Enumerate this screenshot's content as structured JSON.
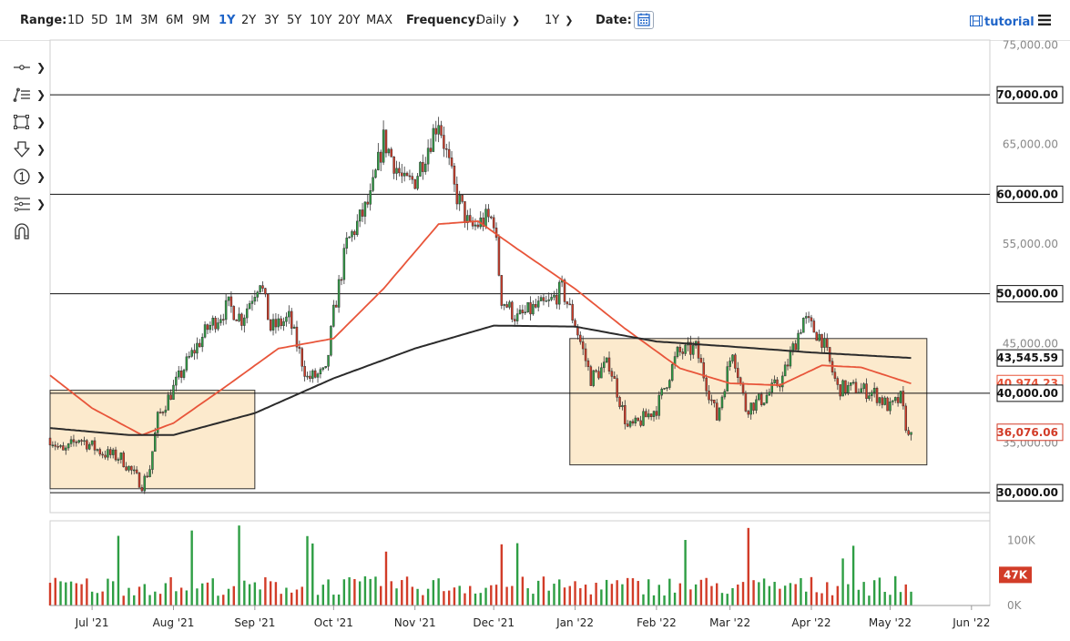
{
  "toolbar": {
    "range_label": "Range:",
    "ranges": [
      "1D",
      "5D",
      "1M",
      "3M",
      "6M",
      "9M",
      "1Y",
      "2Y",
      "3Y",
      "5Y",
      "10Y",
      "20Y",
      "MAX"
    ],
    "active_range": "1Y",
    "frequency_label": "Frequency:",
    "frequency_value": "Daily",
    "period_value": "1Y",
    "date_label": "Date:",
    "tutorial_label": "tutorial"
  },
  "tools": [
    "crosshair-icon",
    "trend-lines-icon",
    "shapes-icon",
    "arrow-down-icon",
    "annotation-icon",
    "fibonacci-icon",
    "magnet-icon"
  ],
  "colors": {
    "up": "#2e9e44",
    "down": "#d23c28",
    "ma_fast": "#e8553a",
    "ma_slow": "#2b2b2b",
    "box_fill": "#fbe6c4",
    "accent": "#1e64c8"
  },
  "chart_data": {
    "type": "candlestick",
    "x_range": [
      "2021-06-15",
      "2022-06-08"
    ],
    "y_range": [
      28000,
      75500
    ],
    "y_ticks": [
      75000,
      70000,
      65000,
      60000,
      55000,
      50000,
      45000,
      40000,
      35000,
      30000
    ],
    "y_tick_labels": [
      "75,000.00",
      "70,000.00",
      "65,000.00",
      "60,000.00",
      "55,000.00",
      "50,000.00",
      "45,000.00",
      "40,000.00",
      "35,000.00",
      "30,000.00"
    ],
    "x_ticks": [
      {
        "date": "2021-07-01",
        "label": "Jul '21"
      },
      {
        "date": "2021-08-01",
        "label": "Aug '21"
      },
      {
        "date": "2021-09-01",
        "label": "Sep '21"
      },
      {
        "date": "2021-10-01",
        "label": "Oct '21"
      },
      {
        "date": "2021-11-01",
        "label": "Nov '21"
      },
      {
        "date": "2021-12-01",
        "label": "Dec '21"
      },
      {
        "date": "2022-01-01",
        "label": "Jan '22"
      },
      {
        "date": "2022-02-01",
        "label": "Feb '22"
      },
      {
        "date": "2022-03-01",
        "label": "Mar '22"
      },
      {
        "date": "2022-04-01",
        "label": "Apr '22"
      },
      {
        "date": "2022-05-01",
        "label": "May '22"
      },
      {
        "date": "2022-06-01",
        "label": "Jun '22"
      }
    ],
    "horizontal_levels": [
      {
        "value": 70000,
        "label": "70,000.00"
      },
      {
        "value": 60000,
        "label": "60,000.00"
      },
      {
        "value": 50000,
        "label": "50,000.00"
      },
      {
        "value": 40000,
        "label": "40,000.00"
      },
      {
        "value": 30000,
        "label": "30,000.00"
      }
    ],
    "boxes": [
      {
        "start": "2021-06-15",
        "end": "2021-09-01",
        "low": 30400,
        "high": 40300
      },
      {
        "start": "2021-12-30",
        "end": "2022-05-15",
        "low": 32800,
        "high": 45500
      }
    ],
    "value_tags": [
      {
        "value": 43545.59,
        "label": "43,545.59",
        "series": "ma_slow"
      },
      {
        "value": 40974.23,
        "label": "40,974.23",
        "series": "ma_fast"
      },
      {
        "value": 36076.06,
        "label": "36,076.06",
        "series": "last"
      }
    ],
    "price_keypoints": [
      [
        "2021-06-15",
        35500
      ],
      [
        "2021-06-20",
        34000
      ],
      [
        "2021-06-26",
        35500
      ],
      [
        "2021-07-05",
        34000
      ],
      [
        "2021-07-12",
        33500
      ],
      [
        "2021-07-20",
        30800
      ],
      [
        "2021-07-23",
        32500
      ],
      [
        "2021-07-26",
        37500
      ],
      [
        "2021-07-30",
        39500
      ],
      [
        "2021-08-07",
        43500
      ],
      [
        "2021-08-14",
        46500
      ],
      [
        "2021-08-22",
        48800
      ],
      [
        "2021-08-27",
        47500
      ],
      [
        "2021-09-03",
        51500
      ],
      [
        "2021-09-07",
        46500
      ],
      [
        "2021-09-14",
        47500
      ],
      [
        "2021-09-21",
        41500
      ],
      [
        "2021-09-28",
        42000
      ],
      [
        "2021-10-01",
        48000
      ],
      [
        "2021-10-06",
        55000
      ],
      [
        "2021-10-15",
        59500
      ],
      [
        "2021-10-20",
        65500
      ],
      [
        "2021-10-28",
        61000
      ],
      [
        "2021-11-01",
        61500
      ],
      [
        "2021-11-10",
        67600
      ],
      [
        "2021-11-16",
        60500
      ],
      [
        "2021-11-22",
        56500
      ],
      [
        "2021-11-28",
        57500
      ],
      [
        "2021-12-01",
        57500
      ],
      [
        "2021-12-04",
        49500
      ],
      [
        "2021-12-10",
        47500
      ],
      [
        "2021-12-16",
        48500
      ],
      [
        "2021-12-22",
        49000
      ],
      [
        "2021-12-27",
        50500
      ],
      [
        "2022-01-01",
        47000
      ],
      [
        "2022-01-07",
        41500
      ],
      [
        "2022-01-14",
        43000
      ],
      [
        "2022-01-21",
        36500
      ],
      [
        "2022-01-24",
        36800
      ],
      [
        "2022-02-01",
        38500
      ],
      [
        "2022-02-09",
        44000
      ],
      [
        "2022-02-16",
        44500
      ],
      [
        "2022-02-24",
        37500
      ],
      [
        "2022-03-02",
        44500
      ],
      [
        "2022-03-07",
        38500
      ],
      [
        "2022-03-14",
        39500
      ],
      [
        "2022-03-21",
        41500
      ],
      [
        "2022-03-29",
        47500
      ],
      [
        "2022-04-05",
        45500
      ],
      [
        "2022-04-11",
        40500
      ],
      [
        "2022-04-18",
        40500
      ],
      [
        "2022-04-25",
        40000
      ],
      [
        "2022-05-01",
        38500
      ],
      [
        "2022-05-05",
        39500
      ],
      [
        "2022-05-08",
        35500
      ],
      [
        "2022-05-09",
        36076
      ]
    ],
    "ma_fast_keypoints": [
      [
        "2021-06-15",
        41800
      ],
      [
        "2021-07-01",
        38500
      ],
      [
        "2021-07-20",
        35800
      ],
      [
        "2021-08-01",
        37000
      ],
      [
        "2021-08-20",
        40500
      ],
      [
        "2021-09-10",
        44500
      ],
      [
        "2021-10-01",
        45500
      ],
      [
        "2021-10-20",
        50500
      ],
      [
        "2021-11-10",
        57000
      ],
      [
        "2021-11-25",
        57300
      ],
      [
        "2021-12-10",
        54500
      ],
      [
        "2022-01-01",
        50500
      ],
      [
        "2022-01-20",
        46500
      ],
      [
        "2022-02-10",
        42500
      ],
      [
        "2022-03-01",
        41000
      ],
      [
        "2022-03-20",
        40800
      ],
      [
        "2022-04-05",
        42800
      ],
      [
        "2022-04-20",
        42600
      ],
      [
        "2022-05-09",
        40974
      ]
    ],
    "ma_slow_keypoints": [
      [
        "2021-06-15",
        36500
      ],
      [
        "2021-07-15",
        35800
      ],
      [
        "2021-08-01",
        35800
      ],
      [
        "2021-09-01",
        38000
      ],
      [
        "2021-10-01",
        41500
      ],
      [
        "2021-11-01",
        44500
      ],
      [
        "2021-12-01",
        46800
      ],
      [
        "2022-01-01",
        46700
      ],
      [
        "2022-02-01",
        45200
      ],
      [
        "2022-03-01",
        44700
      ],
      [
        "2022-04-01",
        44100
      ],
      [
        "2022-05-09",
        43546
      ]
    ],
    "volume": {
      "y_ticks": [
        100000,
        0
      ],
      "y_tick_labels": [
        "100K",
        "0K"
      ],
      "last_label": "47K",
      "last_value": 47000,
      "max": 130000
    }
  }
}
